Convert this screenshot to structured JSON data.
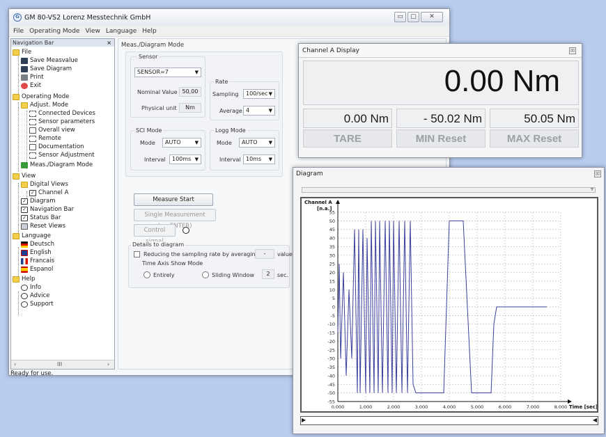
{
  "main_window": {
    "title": "GM 80-VS2 Lorenz Messtechnik GmbH",
    "controls": {
      "minimize": "▭",
      "maximize": "▢",
      "close": "✕"
    },
    "menu": [
      "File",
      "Operating Mode",
      "View",
      "Language",
      "Help"
    ],
    "status": "Ready for use."
  },
  "navigation": {
    "title": "Navigation Bar",
    "close": "×",
    "items": [
      {
        "label": "File",
        "icon": "folder-icon"
      },
      {
        "label": "Save Measvalue",
        "icon": "save-icon"
      },
      {
        "label": "Save Diagram",
        "icon": "save-icon"
      },
      {
        "label": "Print",
        "icon": "print-icon"
      },
      {
        "label": "Exit",
        "icon": "exit-icon"
      },
      {
        "label": "Operating Mode",
        "icon": "folder-icon"
      },
      {
        "label": "Adjust. Mode",
        "icon": "folder-icon"
      },
      {
        "label": "Connected Devices",
        "icon": "tool-icon"
      },
      {
        "label": "Sensor parameters",
        "icon": "tool-icon"
      },
      {
        "label": "Overall view",
        "icon": "box-icon"
      },
      {
        "label": "Remote",
        "icon": "tool-icon"
      },
      {
        "label": "Documentation",
        "icon": "box-icon"
      },
      {
        "label": "Sensor Adjustment",
        "icon": "tool-icon"
      },
      {
        "label": "Meas./Diagram Mode",
        "icon": "green-icon"
      },
      {
        "label": "View",
        "icon": "folder-icon"
      },
      {
        "label": "Digital Views",
        "icon": "folder-icon"
      },
      {
        "label": "Channel A",
        "icon": "checkbox-icon"
      },
      {
        "label": "Diagram",
        "icon": "checkbox-icon"
      },
      {
        "label": "Navigation Bar",
        "icon": "checkbox-icon"
      },
      {
        "label": "Status Bar",
        "icon": "checkbox-icon"
      },
      {
        "label": "Reset Views",
        "icon": "reset-icon"
      },
      {
        "label": "Language",
        "icon": "folder-icon"
      },
      {
        "label": "Deutsch",
        "icon": "flag-de-icon"
      },
      {
        "label": "English",
        "icon": "flag-en-icon"
      },
      {
        "label": "Francais",
        "icon": "flag-fr-icon"
      },
      {
        "label": "Espanol",
        "icon": "flag-es-icon"
      },
      {
        "label": "Help",
        "icon": "folder-icon"
      },
      {
        "label": "Info",
        "icon": "info-icon"
      },
      {
        "label": "Advice",
        "icon": "info-icon"
      },
      {
        "label": "Support",
        "icon": "info-icon"
      }
    ],
    "scroll_left": "‹",
    "scroll_mid": "III",
    "scroll_right": "›"
  },
  "mode_panel": {
    "title": "Meas./Diagram Mode",
    "sensor_group": "Sensor",
    "sensor_value": "SENSOR=7",
    "nominal_label": "Nominal Value",
    "nominal_value": "50,00",
    "unit_label": "Physical unit",
    "unit_value": "Nm",
    "rate_group": "Rate",
    "sampling_label": "Sampling",
    "sampling_value": "100/sec",
    "average_label": "Average",
    "average_value": "4",
    "sci_group": "SCI Mode",
    "sci_mode_label": "Mode",
    "sci_mode_value": "AUTO",
    "sci_interval_label": "Interval",
    "sci_interval_value": "100ms",
    "logg_group": "Logg Mode",
    "logg_mode_label": "Mode",
    "logg_mode_value": "AUTO",
    "logg_interval_label": "Interval",
    "logg_interval_value": "10ms",
    "measure_start": "Measure Start",
    "single_measurement": "Single Measurement (=>ENTER)",
    "control_signal": "Control signal",
    "details_title": "Details to diagram",
    "reduce_label": "Reducing the sampling rate by averaging via",
    "reduce_value": "-",
    "reduce_suffix": "values.",
    "time_axis_title": "Time Axis Show Mode",
    "entirely": "Entirely",
    "sliding": "Sliding Window",
    "sliding_value": "2",
    "sliding_unit": "sec."
  },
  "channel_window": {
    "title": "Channel A Display",
    "close": "☒",
    "main_value": "0.00 Nm",
    "value_current": "0.00 Nm",
    "value_min": "- 50.02 Nm",
    "value_max": "50.05 Nm",
    "tare": "TARE",
    "min_reset": "MIN Reset",
    "max_reset": "MAX Reset"
  },
  "diagram_window": {
    "title": "Diagram",
    "close": "☒",
    "slider_arrow": "▿",
    "left_arrow": "▶",
    "right_arrow": "◀"
  },
  "chart_data": {
    "type": "line",
    "ylabel": "Channel A",
    "yunit": "[n.a.]",
    "xlabel": "Time [sec]",
    "xlim": [
      0,
      8.0
    ],
    "ylim": [
      -55,
      55
    ],
    "x_ticks": [
      "0.000",
      "1.000",
      "2.000",
      "3.000",
      "4.000",
      "5.000",
      "6.000",
      "7.000",
      "8.000"
    ],
    "y_ticks": [
      55,
      50,
      45,
      40,
      35,
      30,
      25,
      20,
      15,
      10,
      5,
      0,
      -5,
      -10,
      -15,
      -20,
      -25,
      -30,
      -35,
      -40,
      -45,
      -50,
      -55
    ],
    "grid": true,
    "line_color": "#3a3f9c",
    "series": [
      {
        "x": [
          0.0,
          0.05,
          0.1,
          0.2,
          0.3,
          0.4,
          0.5,
          0.6,
          0.7,
          0.75,
          0.8,
          0.9,
          1.0,
          1.05,
          1.15,
          1.2,
          1.3,
          1.35,
          1.45,
          1.5,
          1.6,
          1.7,
          1.8,
          1.85,
          1.95,
          2.0,
          2.1,
          2.2,
          2.3,
          2.4,
          2.5,
          2.6,
          2.7,
          2.8,
          3.8,
          4.0,
          4.5,
          4.8,
          5.0,
          5.5,
          5.6,
          5.7,
          7.5
        ],
        "y": [
          -15,
          25,
          -30,
          20,
          -40,
          10,
          -30,
          45,
          -50,
          45,
          -50,
          45,
          -50,
          40,
          -50,
          50,
          -50,
          50,
          -50,
          50,
          -50,
          50,
          -50,
          50,
          -50,
          50,
          -50,
          50,
          -50,
          50,
          -50,
          50,
          -45,
          -50,
          -50,
          50,
          50,
          -50,
          -50,
          -50,
          -10,
          0,
          0
        ]
      }
    ]
  }
}
